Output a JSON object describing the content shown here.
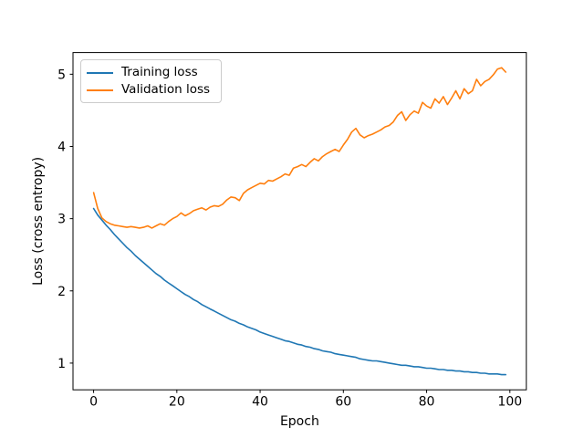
{
  "figure": {
    "xlabel": "Epoch",
    "ylabel": "Loss (cross entropy)",
    "legend": {
      "training_label": "Training loss",
      "validation_label": "Validation loss"
    }
  },
  "colors": {
    "training_line": "#1f77b4",
    "validation_line": "#ff7f0e",
    "axis": "#000000",
    "legend_border": "#cccccc",
    "background": "#ffffff"
  },
  "chart_data": {
    "type": "line",
    "title": "",
    "xlabel": "Epoch",
    "ylabel": "Loss (cross entropy)",
    "x_ticks": [
      0,
      20,
      40,
      60,
      80,
      100
    ],
    "y_ticks": [
      1,
      2,
      3,
      4,
      5
    ],
    "xlim": [
      -4.95,
      103.95
    ],
    "ylim": [
      0.63,
      5.3
    ],
    "grid": false,
    "legend_position": "upper left",
    "x": [
      0,
      1,
      2,
      3,
      4,
      5,
      6,
      7,
      8,
      9,
      10,
      11,
      12,
      13,
      14,
      15,
      16,
      17,
      18,
      19,
      20,
      21,
      22,
      23,
      24,
      25,
      26,
      27,
      28,
      29,
      30,
      31,
      32,
      33,
      34,
      35,
      36,
      37,
      38,
      39,
      40,
      41,
      42,
      43,
      44,
      45,
      46,
      47,
      48,
      49,
      50,
      51,
      52,
      53,
      54,
      55,
      56,
      57,
      58,
      59,
      60,
      61,
      62,
      63,
      64,
      65,
      66,
      67,
      68,
      69,
      70,
      71,
      72,
      73,
      74,
      75,
      76,
      77,
      78,
      79,
      80,
      81,
      82,
      83,
      84,
      85,
      86,
      87,
      88,
      89,
      90,
      91,
      92,
      93,
      94,
      95,
      96,
      97,
      98,
      99
    ],
    "series": [
      {
        "name": "Training loss",
        "color": "#1f77b4",
        "values": [
          3.14,
          3.05,
          2.98,
          2.91,
          2.85,
          2.78,
          2.72,
          2.66,
          2.6,
          2.55,
          2.49,
          2.44,
          2.39,
          2.34,
          2.29,
          2.24,
          2.2,
          2.15,
          2.11,
          2.07,
          2.03,
          1.99,
          1.95,
          1.92,
          1.88,
          1.85,
          1.81,
          1.78,
          1.75,
          1.72,
          1.69,
          1.66,
          1.63,
          1.6,
          1.58,
          1.55,
          1.53,
          1.5,
          1.48,
          1.46,
          1.43,
          1.41,
          1.39,
          1.37,
          1.35,
          1.33,
          1.31,
          1.3,
          1.28,
          1.26,
          1.25,
          1.23,
          1.22,
          1.2,
          1.19,
          1.17,
          1.16,
          1.15,
          1.13,
          1.12,
          1.11,
          1.1,
          1.09,
          1.08,
          1.06,
          1.05,
          1.04,
          1.03,
          1.03,
          1.02,
          1.01,
          1.0,
          0.99,
          0.98,
          0.97,
          0.97,
          0.96,
          0.95,
          0.95,
          0.94,
          0.93,
          0.93,
          0.92,
          0.91,
          0.91,
          0.9,
          0.9,
          0.89,
          0.89,
          0.88,
          0.88,
          0.87,
          0.87,
          0.86,
          0.86,
          0.85,
          0.85,
          0.85,
          0.84,
          0.84
        ]
      },
      {
        "name": "Validation loss",
        "color": "#ff7f0e",
        "values": [
          3.36,
          3.14,
          3.01,
          2.96,
          2.93,
          2.91,
          2.9,
          2.89,
          2.88,
          2.89,
          2.88,
          2.87,
          2.88,
          2.9,
          2.87,
          2.9,
          2.93,
          2.91,
          2.96,
          3.0,
          3.03,
          3.08,
          3.04,
          3.07,
          3.11,
          3.13,
          3.15,
          3.12,
          3.16,
          3.18,
          3.17,
          3.2,
          3.26,
          3.3,
          3.29,
          3.25,
          3.35,
          3.4,
          3.43,
          3.46,
          3.49,
          3.48,
          3.53,
          3.52,
          3.55,
          3.58,
          3.62,
          3.6,
          3.7,
          3.72,
          3.75,
          3.72,
          3.78,
          3.83,
          3.8,
          3.86,
          3.9,
          3.93,
          3.96,
          3.93,
          4.02,
          4.1,
          4.2,
          4.25,
          4.16,
          4.12,
          4.15,
          4.17,
          4.2,
          4.23,
          4.27,
          4.29,
          4.34,
          4.43,
          4.48,
          4.36,
          4.44,
          4.49,
          4.46,
          4.61,
          4.56,
          4.53,
          4.66,
          4.6,
          4.69,
          4.58,
          4.67,
          4.77,
          4.66,
          4.8,
          4.73,
          4.77,
          4.93,
          4.84,
          4.9,
          4.93,
          4.99,
          5.07,
          5.09,
          5.03
        ]
      }
    ]
  }
}
